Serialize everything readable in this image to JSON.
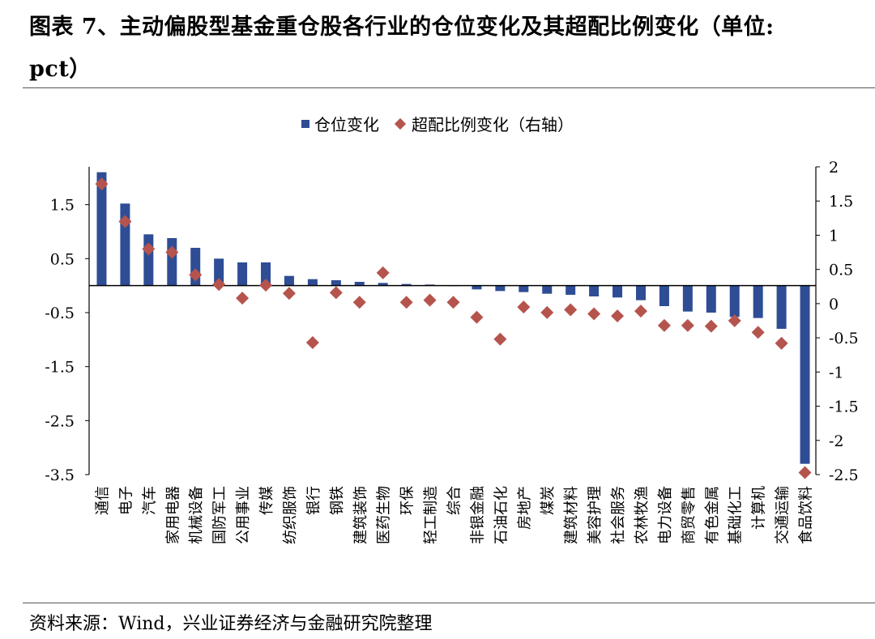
{
  "title_line1": "图表 7、主动偏股型基金重仓股各行业的仓位变化及其超配比例变化（单位:",
  "title_line2": "pct）",
  "source": "资料来源：Wind，兴业证券经济与金融研究院整理",
  "chart_data": {
    "type": "bar",
    "categories": [
      "通信",
      "电子",
      "汽车",
      "家用电器",
      "机械设备",
      "国防军工",
      "公用事业",
      "传媒",
      "纺织服饰",
      "银行",
      "钢铁",
      "建筑装饰",
      "医药生物",
      "环保",
      "轻工制造",
      "综合",
      "非银金融",
      "石油石化",
      "房地产",
      "煤炭",
      "建筑材料",
      "美容护理",
      "社会服务",
      "农林牧渔",
      "电力设备",
      "商贸零售",
      "有色金属",
      "基础化工",
      "计算机",
      "交通运输",
      "食品饮料"
    ],
    "series": [
      {
        "name": "仓位变化",
        "axis": "left",
        "values": [
          2.1,
          1.52,
          0.95,
          0.88,
          0.7,
          0.5,
          0.43,
          0.43,
          0.18,
          0.12,
          0.1,
          0.07,
          0.05,
          0.03,
          0.02,
          0.0,
          -0.07,
          -0.1,
          -0.12,
          -0.15,
          -0.17,
          -0.2,
          -0.22,
          -0.27,
          -0.38,
          -0.48,
          -0.5,
          -0.58,
          -0.6,
          -0.8,
          -3.3
        ]
      },
      {
        "name": "超配比例变化（右轴）",
        "axis": "right",
        "values": [
          1.75,
          1.2,
          0.8,
          0.75,
          0.42,
          0.28,
          0.08,
          0.27,
          0.15,
          -0.57,
          0.16,
          0.02,
          0.45,
          0.02,
          0.05,
          0.02,
          -0.2,
          -0.52,
          -0.05,
          -0.13,
          -0.09,
          -0.15,
          -0.18,
          -0.11,
          -0.32,
          -0.32,
          -0.33,
          -0.25,
          -0.42,
          -0.58,
          -2.47
        ]
      }
    ],
    "y_left": {
      "ticks": [
        "1.5",
        "0.5",
        "-0.5",
        "-1.5",
        "-2.5",
        "-3.5"
      ],
      "ylim": [
        -3.5,
        2.2
      ]
    },
    "y_right": {
      "ticks": [
        "2",
        "1.5",
        "1",
        "0.5",
        "0",
        "-0.5",
        "-1",
        "-1.5",
        "-2",
        "-2.5"
      ],
      "ylim": [
        -2.5,
        2
      ]
    },
    "legend": [
      "仓位变化",
      "超配比例变化（右轴）"
    ],
    "colors": {
      "bar": "#2e4d95",
      "marker": "#b5544d"
    }
  }
}
